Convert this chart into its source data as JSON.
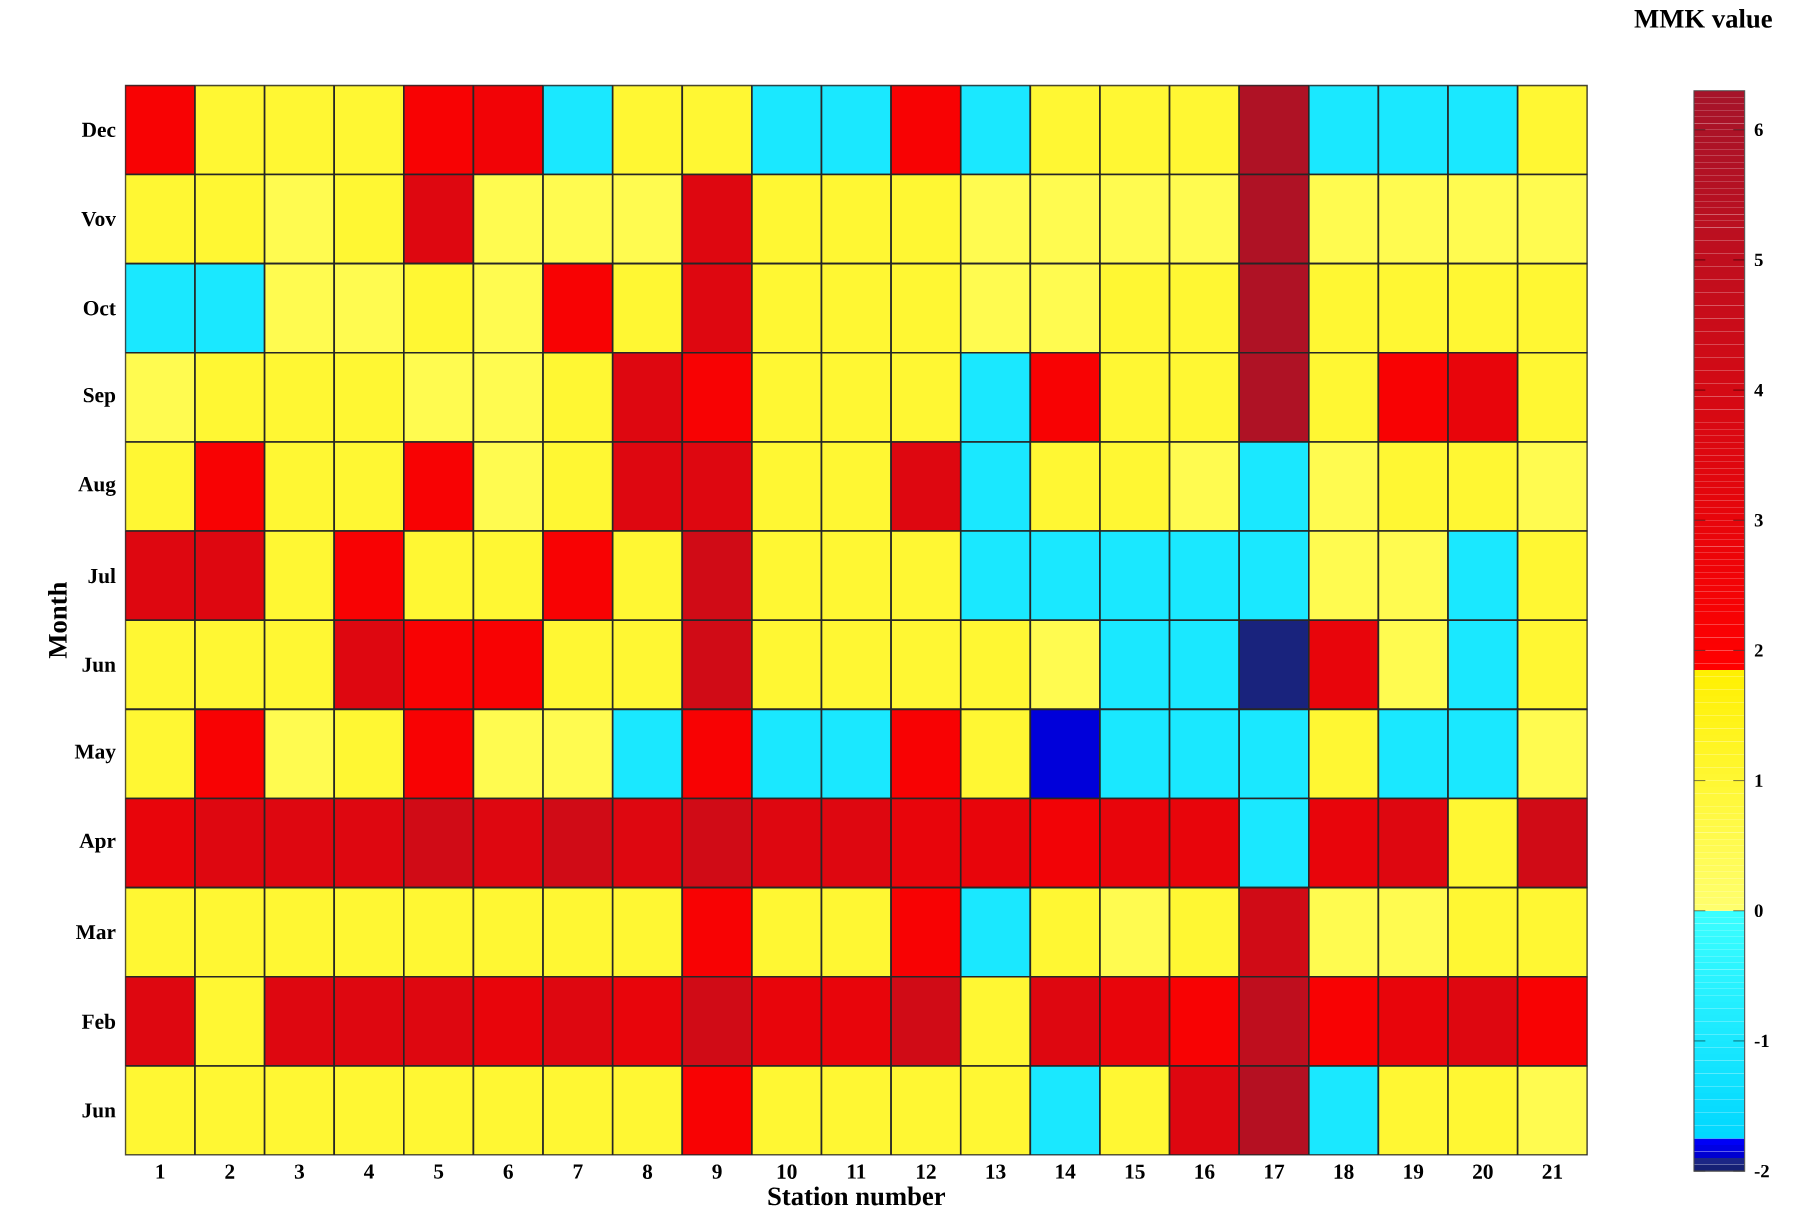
{
  "chart_data": {
    "type": "heatmap",
    "xlabel": "Station number",
    "ylabel": "Month",
    "clabel": "MMK value",
    "categories": [
      "1",
      "2",
      "3",
      "4",
      "5",
      "6",
      "7",
      "8",
      "9",
      "10",
      "11",
      "12",
      "13",
      "14",
      "15",
      "16",
      "17",
      "18",
      "19",
      "20",
      "21"
    ],
    "y_categories": [
      "Dec",
      "Vov",
      "Oct",
      "Sep",
      "Aug",
      "Jul",
      "Jun",
      "May",
      "Apr",
      "Mar",
      "Feb",
      "Jun"
    ],
    "cells": [
      [
        2.2,
        1,
        1,
        1,
        2.2,
        2.5,
        -1,
        1,
        1,
        -1,
        -1,
        2.2,
        -1,
        1,
        1,
        1,
        5.8,
        -1,
        -1,
        -1,
        1
      ],
      [
        1,
        1,
        0.5,
        1,
        3.5,
        0.5,
        0.5,
        0.5,
        3.5,
        1,
        1,
        1,
        0.5,
        0.5,
        0.5,
        0.5,
        5.8,
        0.5,
        0.5,
        0.5,
        0.5
      ],
      [
        -1,
        -1,
        0.5,
        0.5,
        1,
        0.5,
        2.2,
        1,
        3.5,
        1,
        1,
        1,
        0.5,
        0.5,
        1,
        1,
        5.8,
        1,
        1,
        1,
        1
      ],
      [
        0.5,
        1,
        1,
        1,
        0.5,
        0.5,
        1,
        3.5,
        2.2,
        1,
        1,
        1,
        -1,
        2.2,
        1,
        1,
        5.8,
        1,
        2.2,
        3,
        1
      ],
      [
        1,
        2.2,
        1,
        1,
        2.2,
        0.5,
        1,
        3.5,
        3.5,
        1,
        1,
        3.5,
        -1,
        1,
        1,
        0.5,
        -1,
        0.5,
        1,
        1,
        0.5
      ],
      [
        3.5,
        3.5,
        1,
        2.2,
        1,
        1,
        2.2,
        1,
        4.2,
        1,
        1,
        1,
        -1,
        -1,
        -1,
        -1,
        -1,
        0.5,
        0.5,
        -1,
        1
      ],
      [
        1,
        1,
        1,
        3.5,
        2.2,
        2.2,
        1,
        1,
        4.2,
        1,
        1,
        1,
        1,
        0.5,
        -1,
        -1,
        -1.95,
        3,
        0.5,
        -1,
        1
      ],
      [
        1,
        2.2,
        0.5,
        1,
        2.2,
        0.5,
        0.5,
        -1,
        2.2,
        -1,
        -1,
        2.2,
        1,
        -1.85,
        -1,
        -1,
        -1,
        1,
        -1,
        -1,
        0.5
      ],
      [
        3,
        3.5,
        3.5,
        3.5,
        4.2,
        3.5,
        4.2,
        3.5,
        4.2,
        3.5,
        3.5,
        3,
        3,
        2.5,
        3,
        3,
        -1,
        3,
        3.5,
        1,
        4.2
      ],
      [
        1,
        1,
        1,
        1,
        1,
        1,
        1,
        1,
        2.2,
        1,
        1,
        2.2,
        -1,
        1,
        0.5,
        1,
        4.2,
        0.5,
        0.5,
        1,
        1
      ],
      [
        3.5,
        1,
        3.5,
        3.5,
        3.5,
        3,
        3.5,
        3,
        4.2,
        3,
        3,
        4.2,
        1,
        3.5,
        3,
        2.2,
        5,
        2.2,
        3,
        3.5,
        2.2
      ],
      [
        1,
        1,
        1,
        1,
        1,
        1,
        1,
        1,
        2.2,
        1,
        1,
        1,
        1,
        -1,
        1,
        3.5,
        5.5,
        -1,
        1,
        1,
        0.5
      ]
    ],
    "clim": [
      -2,
      6.3
    ],
    "cticks": [
      -2,
      -1,
      0,
      1,
      2,
      3,
      4,
      5,
      6
    ]
  }
}
